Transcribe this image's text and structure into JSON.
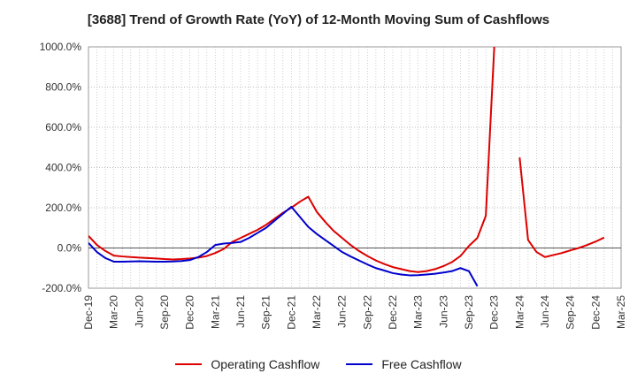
{
  "chart_data": {
    "type": "line",
    "title": "[3688]  Trend of Growth Rate (YoY) of 12-Month Moving Sum of Cashflows",
    "ylim": [
      -200,
      1000
    ],
    "yticks": [
      -200,
      0,
      200,
      400,
      600,
      800,
      1000
    ],
    "ytick_labels": [
      "-200.0%",
      "0.0%",
      "200.0%",
      "400.0%",
      "600.0%",
      "800.0%",
      "1000.0%"
    ],
    "x_start": "2019-12",
    "x_months": 63,
    "xtick_labels": [
      "Dec-19",
      "Mar-20",
      "Jun-20",
      "Sep-20",
      "Dec-20",
      "Mar-21",
      "Jun-21",
      "Sep-21",
      "Dec-21",
      "Mar-22",
      "Jun-22",
      "Sep-22",
      "Dec-22",
      "Mar-23",
      "Jun-23",
      "Sep-23",
      "Dec-23",
      "Mar-24",
      "Jun-24",
      "Sep-24",
      "Dec-24",
      "Mar-25"
    ],
    "grid": true,
    "legend_position": "bottom",
    "series": [
      {
        "name": "Operating Cashflow",
        "color": "#dd0000",
        "values": [
          60,
          15,
          -15,
          -38,
          -42,
          -45,
          -48,
          -50,
          -52,
          -55,
          -57,
          -55,
          -52,
          -48,
          -40,
          -25,
          -5,
          30,
          50,
          70,
          90,
          115,
          145,
          175,
          200,
          230,
          255,
          180,
          130,
          85,
          50,
          15,
          -15,
          -40,
          -62,
          -80,
          -95,
          -105,
          -115,
          -120,
          -115,
          -105,
          -90,
          -70,
          -40,
          10,
          50,
          160,
          1000,
          null,
          null,
          null,
          null,
          null,
          null,
          null,
          null,
          null,
          null,
          null,
          null,
          null,
          null,
          null,
          null,
          null,
          null,
          null,
          null,
          null,
          null,
          null,
          null,
          null,
          null,
          null,
          null,
          null,
          null,
          null,
          null,
          null,
          null,
          null,
          null,
          null,
          null,
          null,
          null,
          null,
          null,
          null,
          null,
          null,
          null,
          null,
          null,
          null,
          null,
          null,
          null,
          null,
          null,
          null,
          null,
          null,
          null,
          null,
          null,
          null,
          null,
          null,
          null,
          null,
          null,
          null,
          null,
          null,
          null,
          null,
          null,
          null,
          null,
          null,
          null,
          null,
          null
        ],
        "segment2": {
          "start_index": 51,
          "values": [
            450,
            40,
            -20,
            -45,
            -35,
            -25,
            -12,
            0,
            15,
            32,
            52
          ]
        }
      },
      {
        "name": "Free Cashflow",
        "color": "#0000cc",
        "values": [
          25,
          -20,
          -50,
          -68,
          -68,
          -67,
          -66,
          -67,
          -68,
          -68,
          -67,
          -65,
          -60,
          -45,
          -20,
          15,
          22,
          25,
          30,
          50,
          75,
          100,
          135,
          170,
          205,
          155,
          105,
          70,
          40,
          10,
          -20,
          -42,
          -62,
          -82,
          -100,
          -112,
          -125,
          -132,
          -136,
          -135,
          -132,
          -128,
          -122,
          -115,
          -100,
          -115,
          -190
        ]
      }
    ]
  }
}
